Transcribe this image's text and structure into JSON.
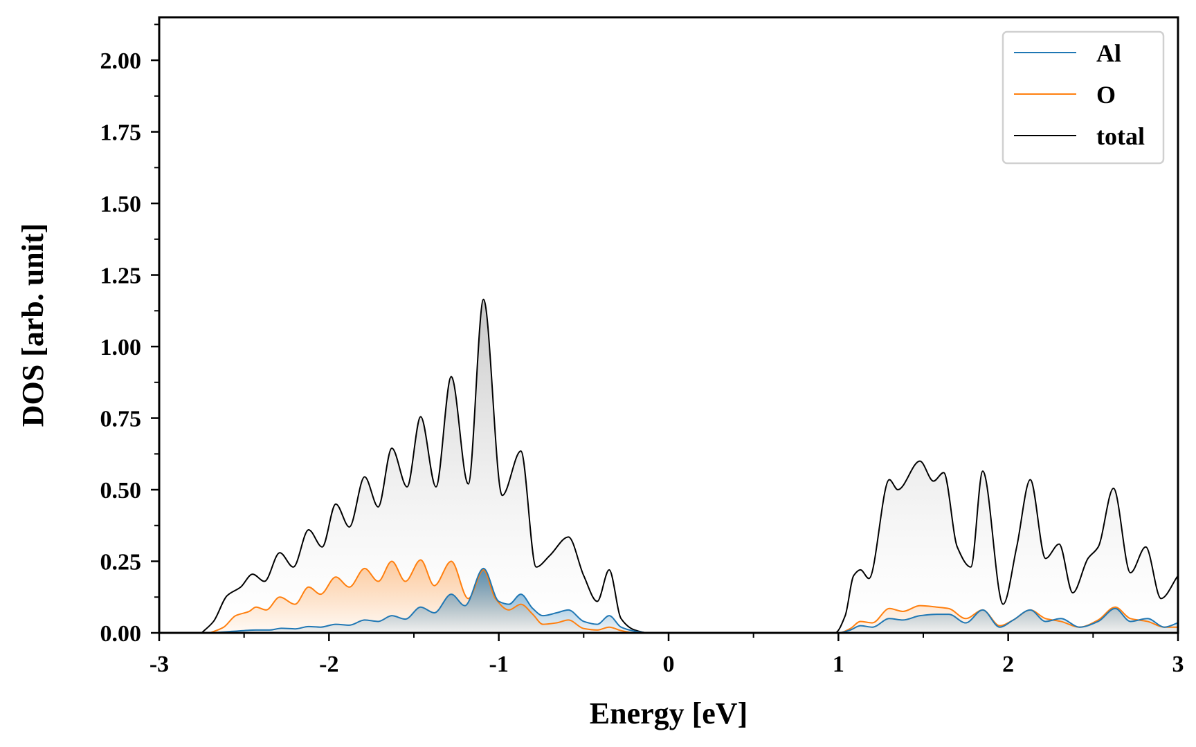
{
  "chart_data": {
    "type": "area",
    "xlabel": "Energy [eV]",
    "ylabel": "DOS [arb. unit]",
    "xlim": [
      -3,
      3
    ],
    "ylim": [
      0,
      2.15
    ],
    "x_ticks": [
      -3,
      -2,
      -1,
      0,
      1,
      2,
      3
    ],
    "x_tick_labels": [
      "-3",
      "-2",
      "-1",
      "0",
      "1",
      "2",
      "3"
    ],
    "y_ticks": [
      0.0,
      0.25,
      0.5,
      0.75,
      1.0,
      1.25,
      1.5,
      1.75,
      2.0
    ],
    "y_tick_labels": [
      "0.00",
      "0.25",
      "0.50",
      "0.75",
      "1.00",
      "1.25",
      "1.50",
      "1.75",
      "2.00"
    ],
    "grid": false,
    "legend_position": "top-right",
    "series": [
      {
        "name": "Al",
        "color": "#1f77b4",
        "points": [
          [
            -2.7,
            0
          ],
          [
            -2.6,
            0.004
          ],
          [
            -2.5,
            0.008
          ],
          [
            -2.43,
            0.01
          ],
          [
            -2.35,
            0.01
          ],
          [
            -2.28,
            0.016
          ],
          [
            -2.2,
            0.014
          ],
          [
            -2.12,
            0.022
          ],
          [
            -2.05,
            0.02
          ],
          [
            -1.96,
            0.03
          ],
          [
            -1.88,
            0.027
          ],
          [
            -1.79,
            0.045
          ],
          [
            -1.71,
            0.04
          ],
          [
            -1.63,
            0.06
          ],
          [
            -1.55,
            0.048
          ],
          [
            -1.46,
            0.09
          ],
          [
            -1.38,
            0.07
          ],
          [
            -1.28,
            0.135
          ],
          [
            -1.2,
            0.095
          ],
          [
            -1.09,
            0.225
          ],
          [
            -1.0,
            0.11
          ],
          [
            -0.94,
            0.1
          ],
          [
            -0.87,
            0.135
          ],
          [
            -0.8,
            0.085
          ],
          [
            -0.74,
            0.06
          ],
          [
            -0.66,
            0.07
          ],
          [
            -0.59,
            0.08
          ],
          [
            -0.5,
            0.04
          ],
          [
            -0.42,
            0.03
          ],
          [
            -0.35,
            0.06
          ],
          [
            -0.28,
            0.02
          ],
          [
            -0.2,
            0.006
          ],
          [
            -0.12,
            0
          ],
          [
            1.0,
            0
          ],
          [
            1.07,
            0.01
          ],
          [
            1.13,
            0.025
          ],
          [
            1.2,
            0.02
          ],
          [
            1.3,
            0.05
          ],
          [
            1.38,
            0.045
          ],
          [
            1.48,
            0.06
          ],
          [
            1.58,
            0.065
          ],
          [
            1.65,
            0.065
          ],
          [
            1.75,
            0.035
          ],
          [
            1.85,
            0.08
          ],
          [
            1.95,
            0.02
          ],
          [
            2.03,
            0.045
          ],
          [
            2.13,
            0.08
          ],
          [
            2.22,
            0.04
          ],
          [
            2.31,
            0.05
          ],
          [
            2.42,
            0.02
          ],
          [
            2.53,
            0.04
          ],
          [
            2.63,
            0.085
          ],
          [
            2.72,
            0.04
          ],
          [
            2.82,
            0.05
          ],
          [
            2.92,
            0.02
          ],
          [
            3.0,
            0.035
          ]
        ]
      },
      {
        "name": "O",
        "color": "#ff7f0e",
        "points": [
          [
            -2.7,
            0
          ],
          [
            -2.62,
            0.02
          ],
          [
            -2.55,
            0.06
          ],
          [
            -2.47,
            0.075
          ],
          [
            -2.43,
            0.09
          ],
          [
            -2.37,
            0.08
          ],
          [
            -2.29,
            0.125
          ],
          [
            -2.2,
            0.1
          ],
          [
            -2.12,
            0.16
          ],
          [
            -2.05,
            0.135
          ],
          [
            -1.96,
            0.195
          ],
          [
            -1.88,
            0.16
          ],
          [
            -1.79,
            0.225
          ],
          [
            -1.71,
            0.18
          ],
          [
            -1.63,
            0.25
          ],
          [
            -1.55,
            0.18
          ],
          [
            -1.46,
            0.255
          ],
          [
            -1.38,
            0.165
          ],
          [
            -1.28,
            0.25
          ],
          [
            -1.18,
            0.12
          ],
          [
            -1.09,
            0.22
          ],
          [
            -1.02,
            0.12
          ],
          [
            -0.94,
            0.08
          ],
          [
            -0.87,
            0.1
          ],
          [
            -0.8,
            0.065
          ],
          [
            -0.74,
            0.03
          ],
          [
            -0.66,
            0.035
          ],
          [
            -0.59,
            0.045
          ],
          [
            -0.5,
            0.015
          ],
          [
            -0.42,
            0.01
          ],
          [
            -0.35,
            0.02
          ],
          [
            -0.28,
            0.008
          ],
          [
            -0.2,
            0
          ],
          [
            1.0,
            0
          ],
          [
            1.07,
            0.015
          ],
          [
            1.13,
            0.04
          ],
          [
            1.2,
            0.035
          ],
          [
            1.3,
            0.085
          ],
          [
            1.38,
            0.075
          ],
          [
            1.48,
            0.095
          ],
          [
            1.58,
            0.09
          ],
          [
            1.65,
            0.085
          ],
          [
            1.75,
            0.05
          ],
          [
            1.85,
            0.08
          ],
          [
            1.95,
            0.025
          ],
          [
            2.03,
            0.045
          ],
          [
            2.13,
            0.08
          ],
          [
            2.22,
            0.05
          ],
          [
            2.31,
            0.04
          ],
          [
            2.42,
            0.02
          ],
          [
            2.53,
            0.045
          ],
          [
            2.63,
            0.09
          ],
          [
            2.72,
            0.05
          ],
          [
            2.82,
            0.04
          ],
          [
            2.92,
            0.02
          ],
          [
            3.0,
            0.02
          ]
        ]
      },
      {
        "name": "total",
        "color": "#000000",
        "points": [
          [
            -2.75,
            0
          ],
          [
            -2.68,
            0.04
          ],
          [
            -2.6,
            0.13
          ],
          [
            -2.52,
            0.16
          ],
          [
            -2.45,
            0.205
          ],
          [
            -2.38,
            0.18
          ],
          [
            -2.29,
            0.28
          ],
          [
            -2.21,
            0.23
          ],
          [
            -2.12,
            0.36
          ],
          [
            -2.04,
            0.3
          ],
          [
            -1.96,
            0.45
          ],
          [
            -1.88,
            0.37
          ],
          [
            -1.79,
            0.545
          ],
          [
            -1.71,
            0.44
          ],
          [
            -1.63,
            0.645
          ],
          [
            -1.54,
            0.51
          ],
          [
            -1.46,
            0.755
          ],
          [
            -1.37,
            0.51
          ],
          [
            -1.28,
            0.895
          ],
          [
            -1.18,
            0.52
          ],
          [
            -1.09,
            1.165
          ],
          [
            -0.98,
            0.48
          ],
          [
            -0.87,
            0.635
          ],
          [
            -0.78,
            0.23
          ],
          [
            -0.7,
            0.27
          ],
          [
            -0.59,
            0.335
          ],
          [
            -0.5,
            0.2
          ],
          [
            -0.42,
            0.11
          ],
          [
            -0.35,
            0.22
          ],
          [
            -0.28,
            0.05
          ],
          [
            -0.2,
            0.01
          ],
          [
            -0.12,
            0
          ],
          [
            0.98,
            0
          ],
          [
            1.04,
            0.06
          ],
          [
            1.09,
            0.2
          ],
          [
            1.13,
            0.22
          ],
          [
            1.18,
            0.19
          ],
          [
            1.3,
            0.535
          ],
          [
            1.35,
            0.5
          ],
          [
            1.48,
            0.6
          ],
          [
            1.56,
            0.53
          ],
          [
            1.62,
            0.56
          ],
          [
            1.7,
            0.3
          ],
          [
            1.78,
            0.23
          ],
          [
            1.85,
            0.565
          ],
          [
            1.97,
            0.1
          ],
          [
            2.05,
            0.3
          ],
          [
            2.13,
            0.535
          ],
          [
            2.22,
            0.26
          ],
          [
            2.3,
            0.31
          ],
          [
            2.38,
            0.14
          ],
          [
            2.47,
            0.26
          ],
          [
            2.53,
            0.3
          ],
          [
            2.62,
            0.505
          ],
          [
            2.72,
            0.21
          ],
          [
            2.81,
            0.3
          ],
          [
            2.9,
            0.12
          ],
          [
            3.0,
            0.2
          ]
        ]
      }
    ]
  }
}
